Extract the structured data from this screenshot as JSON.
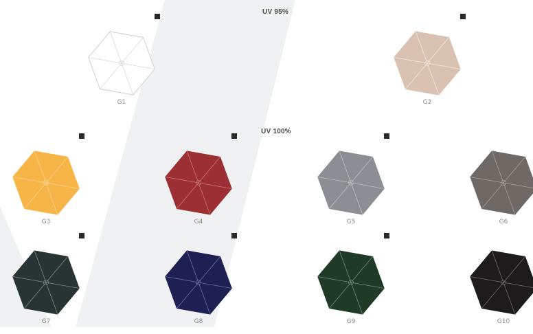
{
  "background": {
    "panel_color": "#f0f1f2"
  },
  "sections": [
    {
      "label": "UV 95%"
    },
    {
      "label": "UV 100%"
    }
  ],
  "swatches": [
    {
      "code": "G1",
      "fill": "#ffffff",
      "stroke": "#cfcfcf",
      "rib": "#d9d9d9"
    },
    {
      "code": "G2",
      "fill": "#d9c2b2",
      "stroke": "#d9c2b2",
      "rib": "#f2e6dd"
    },
    {
      "code": "G3",
      "fill": "#f7b548",
      "stroke": "#f7b548",
      "rib": "#fbd698"
    },
    {
      "code": "G4",
      "fill": "#9c2f33",
      "stroke": "#9c2f33",
      "rib": "#c47679"
    },
    {
      "code": "G5",
      "fill": "#8c8e93",
      "stroke": "#8c8e93",
      "rib": "#bfc0c3"
    },
    {
      "code": "G6",
      "fill": "#6f6966",
      "stroke": "#6f6966",
      "rib": "#a49f9c"
    },
    {
      "code": "G7",
      "fill": "#283433",
      "stroke": "#283433",
      "rib": "#7e8887"
    },
    {
      "code": "G8",
      "fill": "#1e1f52",
      "stroke": "#1e1f52",
      "rib": "#6f7099"
    },
    {
      "code": "G9",
      "fill": "#1f3a26",
      "stroke": "#1f3a26",
      "rib": "#748a79"
    },
    {
      "code": "G10",
      "fill": "#1d1b1c",
      "stroke": "#1d1b1c",
      "rib": "#6e6c6d"
    }
  ]
}
